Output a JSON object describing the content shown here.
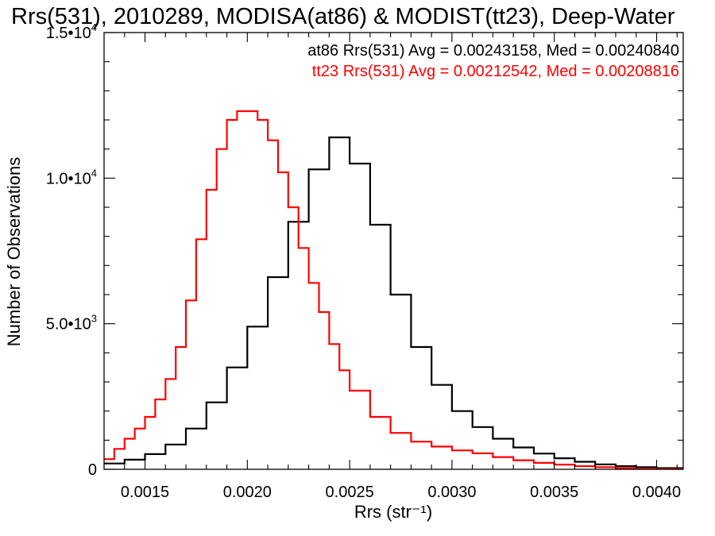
{
  "chart_data": {
    "type": "line",
    "title": "Rrs(531), 2010289, MODISA(at86) & MODIST(tt23), Deep-Water",
    "xlabel": "Rrs (str⁻¹)",
    "ylabel": "Number of Observations",
    "xlim": [
      0.0013,
      0.00413
    ],
    "ylim": [
      0,
      15000
    ],
    "x_ticks": [
      {
        "value": 0.0015,
        "label": "0.0015"
      },
      {
        "value": 0.002,
        "label": "0.0020"
      },
      {
        "value": 0.0025,
        "label": "0.0025"
      },
      {
        "value": 0.003,
        "label": "0.0030"
      },
      {
        "value": 0.0035,
        "label": "0.0035"
      },
      {
        "value": 0.004,
        "label": "0.0040"
      }
    ],
    "y_ticks": [
      {
        "value": 0,
        "mantissa": "0",
        "exponent": ""
      },
      {
        "value": 5000,
        "mantissa": "5.0•10",
        "exponent": "3"
      },
      {
        "value": 10000,
        "mantissa": "1.0•10",
        "exponent": "4"
      },
      {
        "value": 15000,
        "mantissa": "1.5•10",
        "exponent": "4"
      }
    ],
    "grid": false,
    "step": true,
    "legend_position": "top-right",
    "series": [
      {
        "name": "at86 Rrs(531) Avg = 0.00243158, Med = 0.00240840",
        "color": "#000000",
        "x": [
          0.0013,
          0.0014,
          0.0015,
          0.0016,
          0.0017,
          0.0018,
          0.0019,
          0.002,
          0.0021,
          0.0022,
          0.0023,
          0.0024,
          0.0025,
          0.0026,
          0.0027,
          0.0028,
          0.0029,
          0.003,
          0.0031,
          0.0032,
          0.0033,
          0.0034,
          0.0035,
          0.0036,
          0.0037,
          0.0038,
          0.0039,
          0.004,
          0.00413
        ],
        "y": [
          200,
          330,
          520,
          850,
          1400,
          2300,
          3500,
          4900,
          6600,
          8500,
          10300,
          11400,
          10500,
          8400,
          6000,
          4200,
          2900,
          2000,
          1450,
          1050,
          750,
          540,
          380,
          260,
          170,
          110,
          70,
          40,
          10
        ]
      },
      {
        "name": "tt23 Rrs(531) Avg = 0.00212542, Med = 0.00208816",
        "color": "#ff0000",
        "x": [
          0.0013,
          0.00135,
          0.0014,
          0.00145,
          0.0015,
          0.00155,
          0.0016,
          0.00165,
          0.0017,
          0.00175,
          0.0018,
          0.00185,
          0.0019,
          0.00195,
          0.002,
          0.00205,
          0.0021,
          0.00215,
          0.0022,
          0.00225,
          0.0023,
          0.00235,
          0.0024,
          0.00245,
          0.0025,
          0.0026,
          0.0027,
          0.0028,
          0.0029,
          0.003,
          0.0031,
          0.0032,
          0.0033,
          0.0034,
          0.0035,
          0.0036,
          0.0037,
          0.0038,
          0.0039,
          0.004,
          0.00413
        ],
        "y": [
          350,
          700,
          1050,
          1400,
          1800,
          2400,
          3100,
          4200,
          5800,
          7900,
          9600,
          11000,
          12000,
          12300,
          12300,
          12000,
          11300,
          10200,
          9000,
          7600,
          6400,
          5400,
          4300,
          3400,
          2700,
          1800,
          1250,
          950,
          780,
          650,
          550,
          420,
          310,
          220,
          160,
          110,
          75,
          45,
          25,
          12,
          5
        ]
      }
    ]
  }
}
